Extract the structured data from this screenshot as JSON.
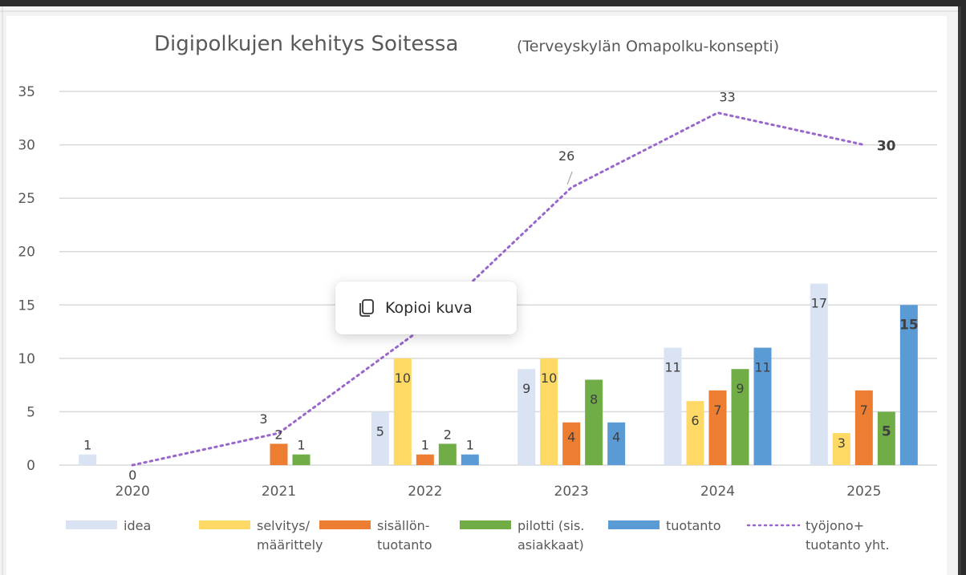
{
  "context_menu": {
    "items": [
      {
        "label": "Kopioi kuva",
        "icon": "copy-icon"
      }
    ]
  },
  "chart_data": {
    "type": "bar",
    "title": "Digipolkujen kehitys Soitessa",
    "subtitle": "(Terveyskylän Omapolku-konsepti)",
    "xlabel": "",
    "ylabel": "",
    "ylim": [
      0,
      35
    ],
    "yticks": [
      "0",
      "5",
      "10",
      "15",
      "20",
      "25",
      "30",
      "35"
    ],
    "grid": true,
    "legend_position": "bottom",
    "categories": [
      "2020",
      "2021",
      "2022",
      "2023",
      "2024",
      "2025"
    ],
    "series": [
      {
        "name": "idea",
        "legend_lines": [
          "idea"
        ],
        "type": "bar",
        "color": "#dae3f3",
        "values": [
          1,
          0,
          5,
          9,
          11,
          17
        ],
        "labels": [
          "1",
          "",
          "5",
          "9",
          "11",
          "17"
        ]
      },
      {
        "name": "selvitys/ määrittely",
        "legend_lines": [
          "selvitys/",
          "määrittely"
        ],
        "type": "bar",
        "color": "#ffd966",
        "values": [
          0,
          0,
          10,
          10,
          6,
          3
        ],
        "labels": [
          "",
          "",
          "10",
          "10",
          "6",
          "3"
        ]
      },
      {
        "name": "sisällön- tuotanto",
        "legend_lines": [
          "sisällön-",
          "tuotanto"
        ],
        "type": "bar",
        "color": "#ed7d31",
        "values": [
          0,
          2,
          1,
          4,
          7,
          7
        ],
        "labels": [
          "",
          "2",
          "1",
          "4",
          "7",
          "7"
        ]
      },
      {
        "name": "pilotti (sis. asiakkaat)",
        "legend_lines": [
          "pilotti (sis.",
          "asiakkaat)"
        ],
        "type": "bar",
        "color": "#70ad47",
        "values": [
          0,
          1,
          2,
          8,
          9,
          5
        ],
        "labels": [
          "",
          "1",
          "2",
          "8",
          "9",
          "5"
        ]
      },
      {
        "name": "tuotanto",
        "legend_lines": [
          "tuotanto"
        ],
        "type": "bar",
        "color": "#5b9bd5",
        "values": [
          0,
          0,
          1,
          4,
          11,
          15
        ],
        "labels": [
          "",
          "",
          "1",
          "4",
          "11",
          "15"
        ]
      },
      {
        "name": "työjono+ tuotanto yht.",
        "legend_lines": [
          "työjono+",
          "tuotanto yht."
        ],
        "type": "line",
        "style": "dotted",
        "color": "#9966cc",
        "values": [
          0,
          3,
          13,
          26,
          33,
          30
        ],
        "labels": [
          "0",
          "3",
          "",
          "26",
          "33",
          "30"
        ]
      }
    ]
  }
}
